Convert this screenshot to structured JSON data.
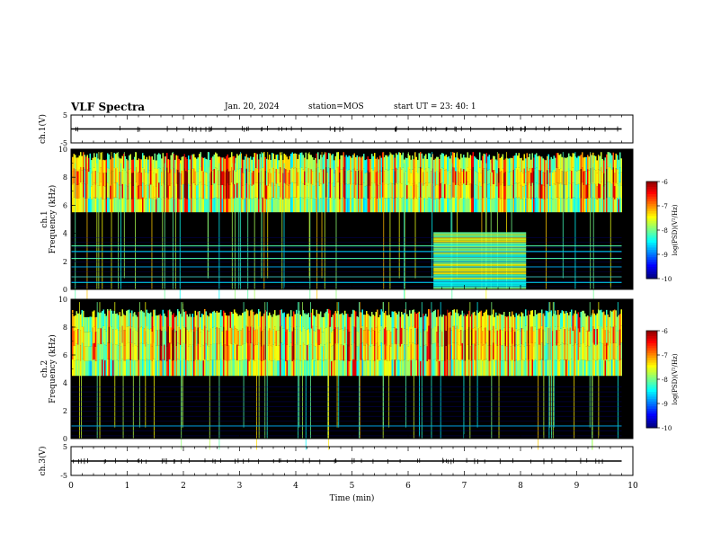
{
  "header": {
    "title": "VLF Spectra",
    "date": "Jan. 20, 2024",
    "station": "station=MOS",
    "start": "start  UT  =   23: 40: 1"
  },
  "chart_data": [
    {
      "type": "line",
      "panel": "ch1-waveform",
      "ylabel": "ch.1(V)",
      "ylim": [
        -5,
        5
      ],
      "yticks": [
        "5",
        "-5"
      ],
      "xlim": [
        0,
        10
      ],
      "series": [
        {
          "x": [
            0,
            9.8
          ],
          "y": [
            0,
            0
          ],
          "color": "#000000"
        }
      ]
    },
    {
      "type": "heatmap",
      "panel": "ch1-spectrogram",
      "ylabel": "ch.1 Frequency (kHz)",
      "ylim": [
        0,
        10
      ],
      "yticks": [
        "0",
        "2",
        "4",
        "6",
        "8",
        "10"
      ],
      "xlim": [
        0,
        10
      ],
      "data_end_min": 9.8,
      "emission_band_khz": [
        5.5,
        9.5
      ],
      "enhanced_block": {
        "t": [
          6.45,
          8.1
        ],
        "f_khz": [
          0,
          4
        ]
      },
      "line_freqs_khz": [
        0.5,
        0.9,
        1.6,
        2.2,
        2.7,
        3.1
      ],
      "colorbar": {
        "label": "log(PSD)(V²/Hz)",
        "range": [
          -10,
          -6
        ],
        "ticks": [
          "-6",
          "-7",
          "-8",
          "-9",
          "-10"
        ]
      }
    },
    {
      "type": "heatmap",
      "panel": "ch2-spectrogram",
      "ylabel": "ch.2 Frequency (kHz)",
      "ylim": [
        0,
        10
      ],
      "yticks": [
        "0",
        "2",
        "4",
        "6",
        "8",
        "10"
      ],
      "xlim": [
        0,
        10
      ],
      "data_end_min": 9.8,
      "emission_band_khz": [
        4.5,
        9.0
      ],
      "line_freqs_khz": [
        0.9
      ],
      "colorbar": {
        "label": "log(PSD)(V²/Hz)",
        "range": [
          -10,
          -6
        ],
        "ticks": [
          "-6",
          "-7",
          "-8",
          "-9",
          "-10"
        ]
      }
    },
    {
      "type": "line",
      "panel": "ch3-waveform",
      "ylabel": "ch.3(V)",
      "ylim": [
        -5,
        5
      ],
      "yticks": [
        "5",
        "-5"
      ],
      "xlim": [
        0,
        10
      ],
      "xlabel": "Time (min)",
      "xticks": [
        "0",
        "1",
        "2",
        "3",
        "4",
        "5",
        "6",
        "7",
        "8",
        "9",
        "10"
      ],
      "series": [
        {
          "x": [
            0,
            9.8
          ],
          "y": [
            0,
            0
          ],
          "color": "#000000"
        }
      ]
    }
  ]
}
